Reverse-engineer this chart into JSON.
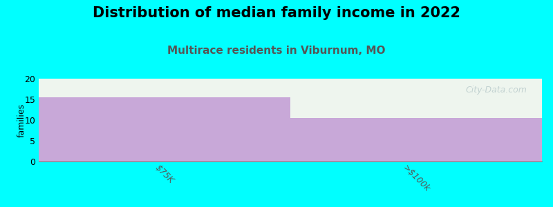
{
  "title": "Distribution of median family income in 2022",
  "subtitle": "Multirace residents in Viburnum, MO",
  "categories": [
    "$75K",
    ">$100k"
  ],
  "values": [
    15.5,
    10.5
  ],
  "bar_color": "#c8a8d8",
  "background_color": "#00ffff",
  "plot_bg_color": "#eef5ee",
  "ylabel": "families",
  "ylim": [
    0,
    20
  ],
  "yticks": [
    0,
    5,
    10,
    15,
    20
  ],
  "title_fontsize": 15,
  "subtitle_fontsize": 11,
  "subtitle_color": "#555555",
  "watermark": "City-Data.com",
  "watermark_color": "#bbcccc"
}
